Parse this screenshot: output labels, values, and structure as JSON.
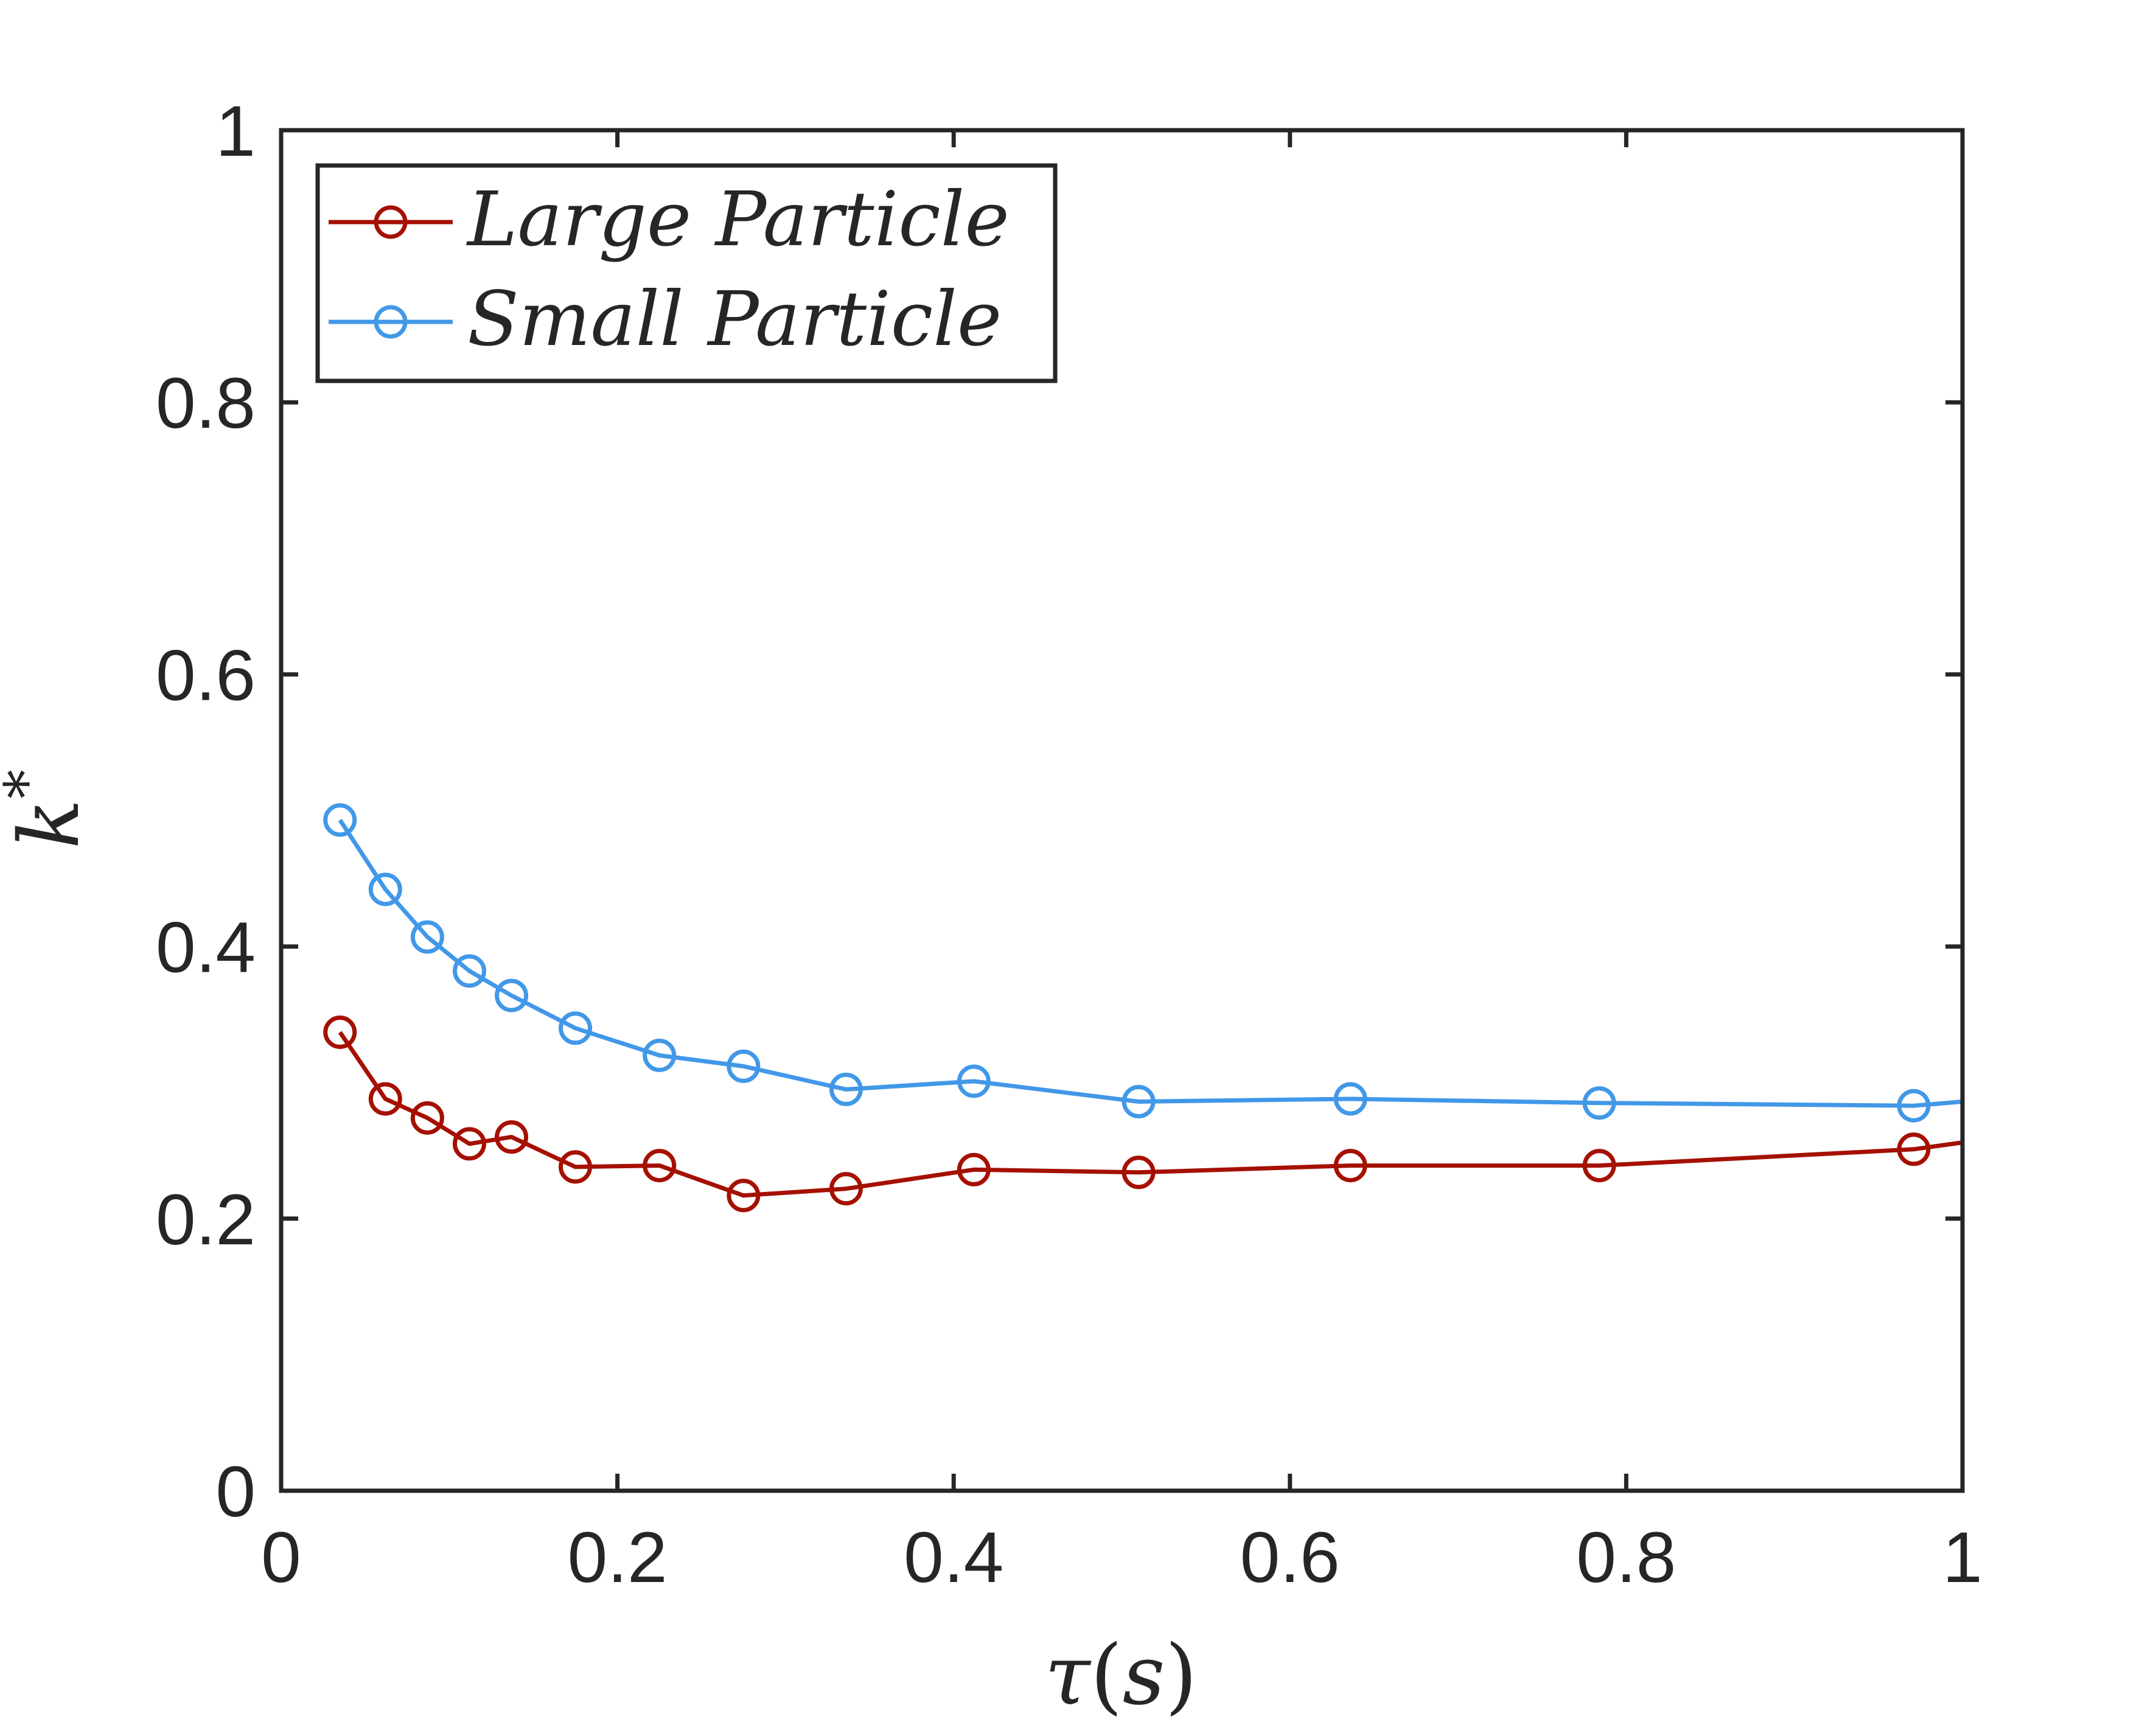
{
  "chart_data": {
    "type": "line",
    "title": "",
    "xlabel": "τ(s)",
    "ylabel": "k*",
    "xlim": [
      0,
      1
    ],
    "ylim": [
      0,
      1
    ],
    "xticks": [
      0,
      0.2,
      0.4,
      0.6,
      0.8,
      1
    ],
    "xtick_labels": [
      "0",
      "0.2",
      "0.4",
      "0.6",
      "0.8",
      "1"
    ],
    "yticks": [
      0,
      0.2,
      0.4,
      0.6,
      0.8,
      1
    ],
    "ytick_labels": [
      "0",
      "0.2",
      "0.4",
      "0.6",
      "0.8",
      "1"
    ],
    "grid": false,
    "legend_position": "top-left",
    "series": [
      {
        "name": "Large Particle",
        "color": "#A51000",
        "marker": "open-circle",
        "x": [
          0.035,
          0.062,
          0.087,
          0.112,
          0.137,
          0.175,
          0.225,
          0.275,
          0.336,
          0.412,
          0.51,
          0.636,
          0.784,
          0.971,
          1.0
        ],
        "y": [
          0.337,
          0.288,
          0.274,
          0.255,
          0.26,
          0.238,
          0.239,
          0.217,
          0.222,
          0.236,
          0.234,
          0.239,
          0.239,
          0.251,
          0.256
        ],
        "marker_x": [
          0.035,
          0.062,
          0.087,
          0.112,
          0.137,
          0.175,
          0.225,
          0.275,
          0.336,
          0.412,
          0.51,
          0.636,
          0.784,
          0.971
        ]
      },
      {
        "name": "Small Particle",
        "color": "#4298E8",
        "marker": "open-circle",
        "x": [
          0.035,
          0.062,
          0.087,
          0.112,
          0.137,
          0.175,
          0.225,
          0.275,
          0.336,
          0.412,
          0.51,
          0.636,
          0.784,
          0.971,
          1.0
        ],
        "y": [
          0.493,
          0.442,
          0.407,
          0.382,
          0.364,
          0.34,
          0.32,
          0.312,
          0.295,
          0.301,
          0.286,
          0.288,
          0.285,
          0.283,
          0.286
        ],
        "marker_x": [
          0.035,
          0.062,
          0.087,
          0.112,
          0.137,
          0.175,
          0.225,
          0.275,
          0.336,
          0.412,
          0.51,
          0.636,
          0.784,
          0.971
        ]
      }
    ]
  },
  "labels": {
    "xlabel_main": "τ",
    "xlabel_paren_open": "(",
    "xlabel_unit": "s",
    "xlabel_paren_close": ")",
    "ylabel_main": "k",
    "ylabel_sup": "*"
  },
  "legend": {
    "large": "Large Particle",
    "small": "Small Particle"
  }
}
